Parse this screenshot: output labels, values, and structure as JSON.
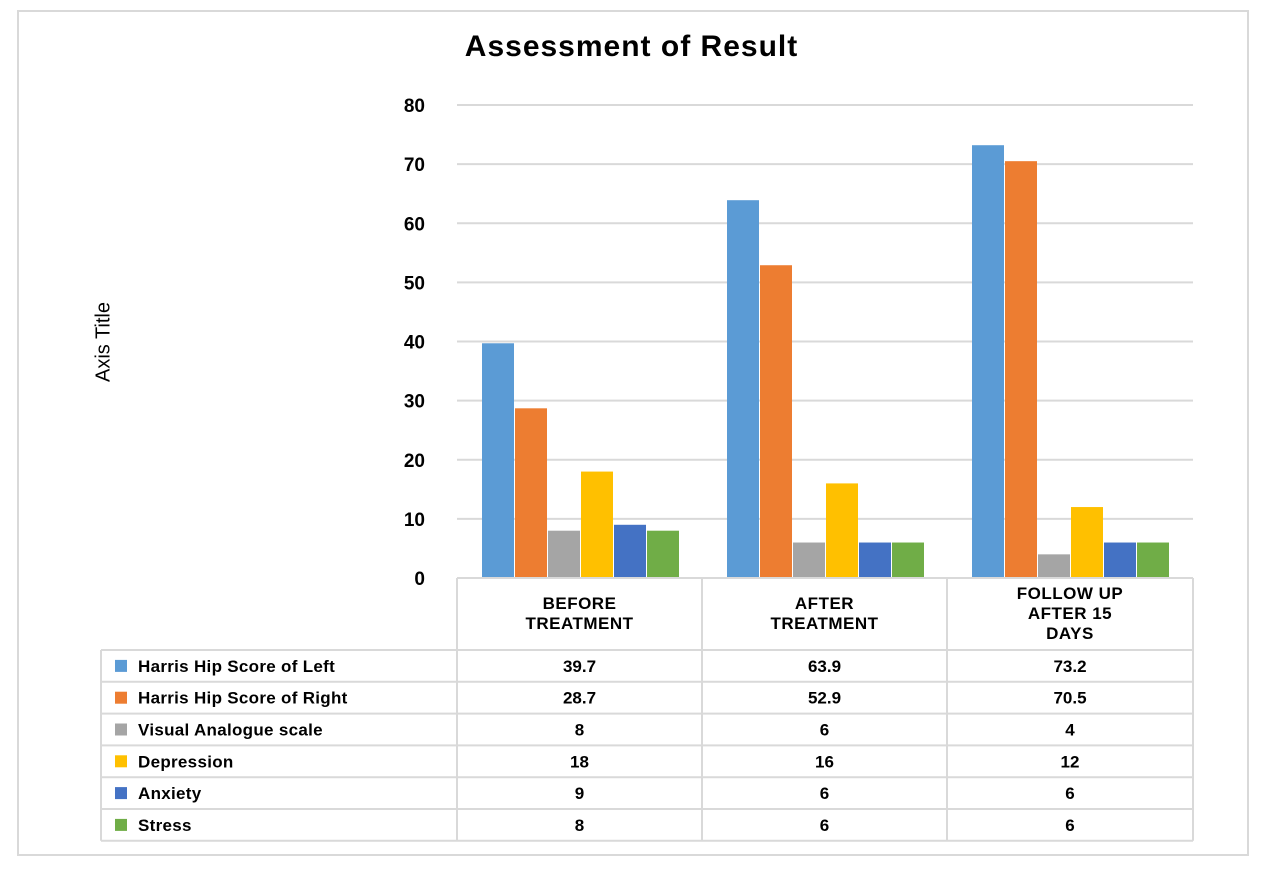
{
  "chart_data": {
    "type": "bar",
    "title": "Assessment of Result",
    "ylabel": "Axis Title",
    "xlabel": "",
    "ylim": [
      0,
      80
    ],
    "yticks": [
      0,
      10,
      20,
      30,
      40,
      50,
      60,
      70,
      80
    ],
    "grid": true,
    "legend": "data-table",
    "categories": [
      [
        "BEFORE",
        "TREATMENT"
      ],
      [
        "AFTER",
        "TREATMENT"
      ],
      [
        "FOLLOW UP",
        "AFTER 15",
        "DAYS"
      ]
    ],
    "series": [
      {
        "name": "Harris Hip Score of Left",
        "color": "#5b9bd5",
        "values": [
          39.7,
          63.9,
          73.2
        ]
      },
      {
        "name": "Harris Hip Score of Right",
        "color": "#ed7d31",
        "values": [
          28.7,
          52.9,
          70.5
        ]
      },
      {
        "name": "Visual Analogue scale",
        "color": "#a5a5a5",
        "values": [
          8,
          6,
          4
        ]
      },
      {
        "name": "Depression",
        "color": "#ffc000",
        "values": [
          18,
          16,
          12
        ]
      },
      {
        "name": "Anxiety",
        "color": "#4472c4",
        "values": [
          9,
          6,
          6
        ]
      },
      {
        "name": "Stress",
        "color": "#70ad47",
        "values": [
          8,
          6,
          6
        ]
      }
    ]
  }
}
